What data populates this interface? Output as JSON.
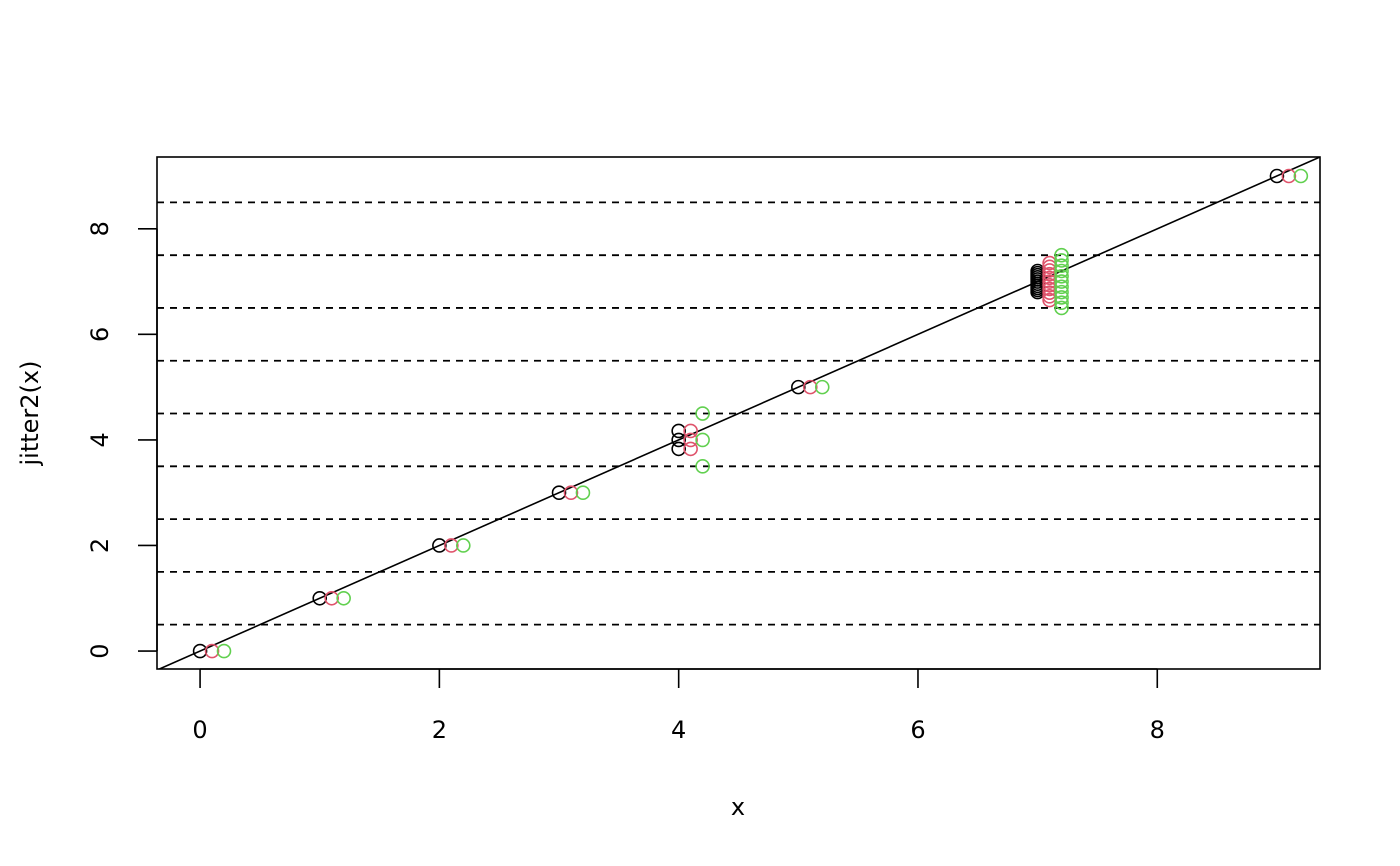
{
  "chart_data": {
    "type": "scatter",
    "title": "",
    "xlabel": "x",
    "ylabel": "jitter2(x)",
    "xlim": [
      -0.36,
      9.36
    ],
    "ylim": [
      -0.34,
      9.36
    ],
    "xticks": [
      0,
      2,
      4,
      6,
      8
    ],
    "yticks": [
      0,
      2,
      4,
      6,
      8
    ],
    "grid": false,
    "hlines_dashed": [
      0.5,
      1.5,
      2.5,
      3.5,
      4.5,
      5.5,
      6.5,
      7.5,
      8.5
    ],
    "abline": {
      "intercept": 0,
      "slope": 1
    },
    "series": [
      {
        "color": "#000000",
        "x": [
          0,
          1,
          2,
          3,
          4,
          4,
          4,
          5,
          7,
          7,
          7,
          7,
          7,
          7,
          7,
          7,
          7,
          7,
          7,
          9
        ],
        "y": [
          0,
          1,
          2,
          3,
          3.83,
          4,
          4.17,
          5,
          6.8,
          6.84,
          6.88,
          6.92,
          6.96,
          7,
          7.04,
          7.08,
          7.12,
          7.16,
          7.2,
          9
        ]
      },
      {
        "color": "#DF536B",
        "x": [
          0.1,
          1.1,
          2.1,
          3.1,
          4.1,
          4.1,
          4.1,
          5.1,
          7.1,
          7.1,
          7.1,
          7.1,
          7.1,
          7.1,
          7.1,
          7.1,
          7.1,
          7.1,
          7.1,
          9.1
        ],
        "y": [
          0,
          1,
          2,
          3,
          3.83,
          4,
          4.17,
          5,
          6.65,
          6.72,
          6.79,
          6.86,
          6.93,
          7,
          7.07,
          7.14,
          7.21,
          7.28,
          7.35,
          9
        ]
      },
      {
        "color": "#61D04F",
        "x": [
          0.2,
          1.2,
          2.2,
          3.2,
          4.2,
          4.2,
          4.2,
          5.2,
          7.2,
          7.2,
          7.2,
          7.2,
          7.2,
          7.2,
          7.2,
          7.2,
          7.2,
          7.2,
          7.2,
          9.2
        ],
        "y": [
          0,
          1,
          2,
          3,
          3.5,
          4,
          4.5,
          5,
          6.5,
          6.6,
          6.7,
          6.8,
          6.9,
          7,
          7.1,
          7.2,
          7.3,
          7.4,
          7.5,
          9
        ]
      }
    ]
  }
}
